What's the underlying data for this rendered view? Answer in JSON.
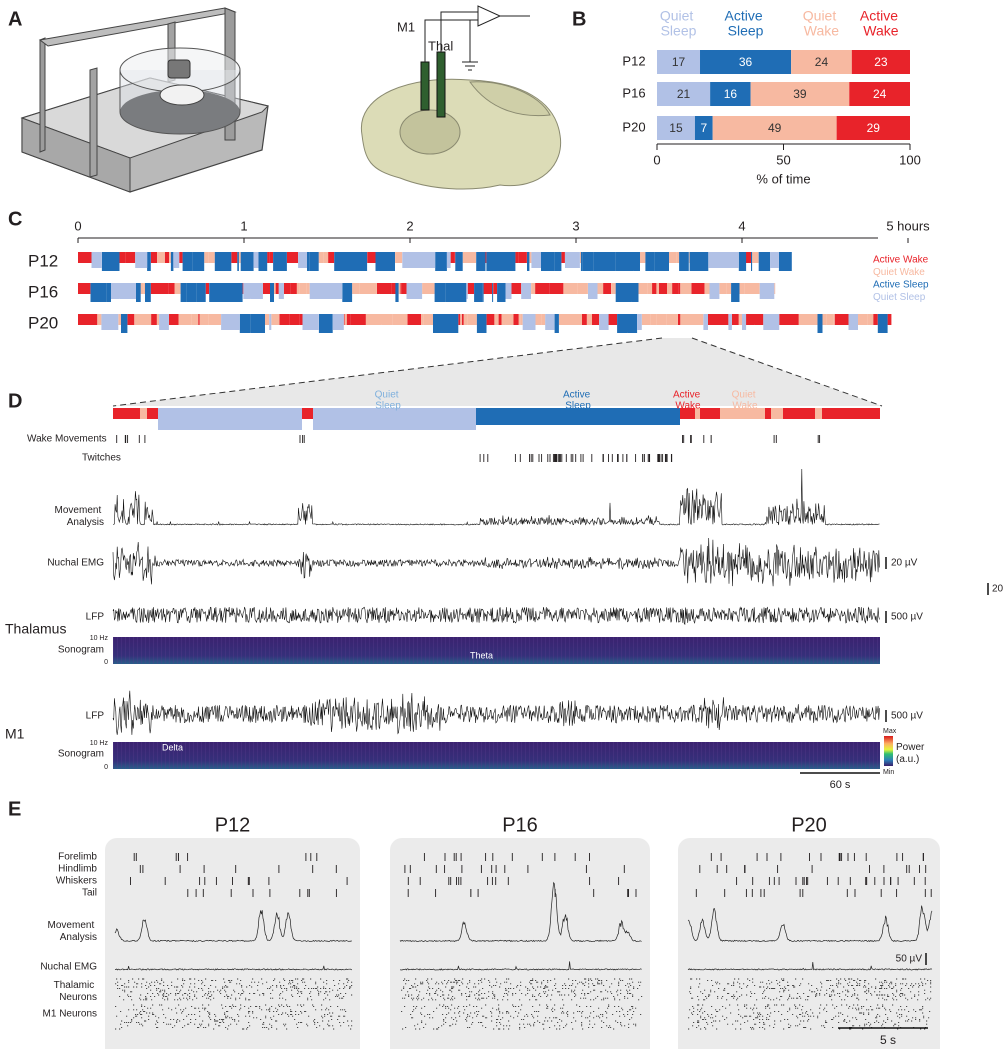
{
  "panel_labels": [
    "A",
    "B",
    "C",
    "D",
    "E"
  ],
  "panel_a": {
    "electrode_labels": [
      "M1",
      "Thal"
    ]
  },
  "chart_data": [
    {
      "type": "bar",
      "orientation": "horizontal",
      "stacked": true,
      "categories": [
        "P12",
        "P16",
        "P20"
      ],
      "series": [
        {
          "name": "Quiet Sleep",
          "color": "#b1c1e6",
          "values": [
            17,
            21,
            15
          ]
        },
        {
          "name": "Active Sleep",
          "color": "#1f6db5",
          "values": [
            36,
            16,
            7
          ]
        },
        {
          "name": "Quiet Wake",
          "color": "#f7b9a1",
          "values": [
            24,
            39,
            49
          ]
        },
        {
          "name": "Active Wake",
          "color": "#e8232a",
          "values": [
            23,
            24,
            29
          ]
        }
      ],
      "xlim": [
        0,
        100
      ],
      "xticks": [
        0,
        50,
        100
      ],
      "xlabel": "% of time"
    },
    {
      "type": "hypnogram",
      "categories": [
        "P12",
        "P16",
        "P20"
      ],
      "values": [
        4.3,
        4.2,
        4.9
      ],
      "xlim": [
        0,
        5
      ],
      "xticks": [
        0,
        1,
        2,
        3,
        4,
        {
          "value": 5,
          "label": "5 hours"
        }
      ],
      "series": [
        {
          "name": "Active Wake",
          "color": "#e8232a"
        },
        {
          "name": "Quiet Wake",
          "color": "#f7b9a1"
        },
        {
          "name": "Active Sleep",
          "color": "#1f6db5"
        },
        {
          "name": "Quiet Sleep",
          "color": "#b1c1e6"
        }
      ]
    }
  ],
  "panel_d": {
    "states": [
      "Quiet Sleep",
      "Active Sleep",
      "Active Wake",
      "Quiet Wake"
    ],
    "rows": {
      "wake_movements": "Wake Movements",
      "twitches": "Twitches",
      "movement": "Movement Analysis",
      "emg": "Nuchal EMG",
      "thal_region": "Thalamus",
      "thal_lfp": "LFP",
      "thal_sono": "Sonogram",
      "m1_region": "M1",
      "m1_lfp": "LFP",
      "m1_sono": "Sonogram"
    },
    "scale_labels": [
      "20 µV",
      "500 µV",
      "500 µV"
    ],
    "sono_ticks": [
      [
        0,
        {
          "value": 10,
          "label": "10 Hz"
        }
      ],
      [
        0,
        {
          "value": 10,
          "label": "10 Hz"
        }
      ]
    ],
    "annotations": [
      "Theta",
      "Delta"
    ],
    "colorbar": {
      "title": "Power (a.u.)",
      "max": "Max",
      "min": "Min"
    },
    "time_scale": "60 s",
    "stray_label": "20"
  },
  "panel_e": {
    "titles": [
      "P12",
      "P16",
      "P20"
    ],
    "rows": [
      "Forelimb",
      "Hindlimb",
      "Whiskers",
      "Tail",
      "Movement Analysis",
      "Nuchal EMG",
      "Thalamic Neurons",
      "M1 Neurons"
    ],
    "emg_scale": "50 µV",
    "time_scale": "5 s"
  }
}
